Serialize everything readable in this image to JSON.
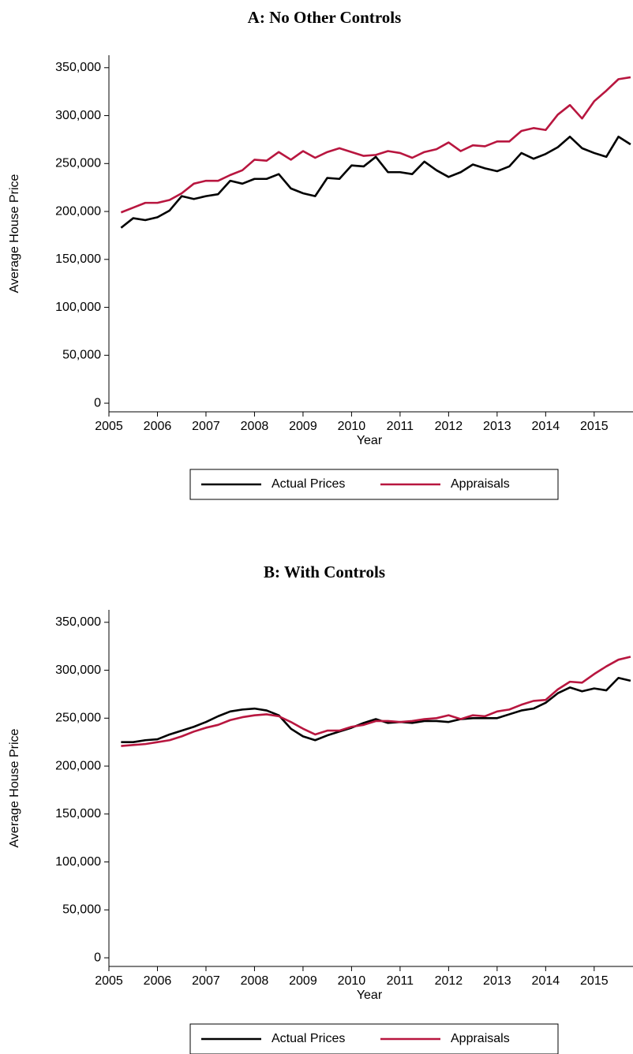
{
  "chart_data": [
    {
      "type": "line",
      "title": "A: No Other Controls",
      "x_label": "Year",
      "y_label": "Average House Price",
      "x": [
        2005.25,
        2005.5,
        2005.75,
        2006,
        2006.25,
        2006.5,
        2006.75,
        2007,
        2007.25,
        2007.5,
        2007.75,
        2008,
        2008.25,
        2008.5,
        2008.75,
        2009,
        2009.25,
        2009.5,
        2009.75,
        2010,
        2010.25,
        2010.5,
        2010.75,
        2011,
        2011.25,
        2011.5,
        2011.75,
        2012,
        2012.25,
        2012.5,
        2012.75,
        2013,
        2013.25,
        2013.5,
        2013.75,
        2014,
        2014.25,
        2014.5,
        2014.75,
        2015,
        2015.25,
        2015.5,
        2015.75
      ],
      "series": [
        {
          "name": "Actual Prices",
          "color": "#000000",
          "values": [
            183000,
            193000,
            191000,
            194000,
            201000,
            216000,
            213000,
            216000,
            218000,
            232000,
            229000,
            234000,
            234000,
            239000,
            224000,
            219000,
            216000,
            235000,
            234000,
            248000,
            247000,
            257000,
            241000,
            241000,
            239000,
            252000,
            243000,
            236000,
            241000,
            249000,
            245000,
            242000,
            247000,
            261000,
            255000,
            260000,
            267000,
            278000,
            266000,
            261000,
            257000,
            278000,
            270000
          ]
        },
        {
          "name": "Appraisals",
          "color": "#b8163f",
          "values": [
            199000,
            204000,
            209000,
            209000,
            212000,
            219000,
            229000,
            232000,
            232000,
            238000,
            243000,
            254000,
            253000,
            262000,
            254000,
            263000,
            256000,
            262000,
            266000,
            262000,
            258000,
            259000,
            263000,
            261000,
            256000,
            262000,
            265000,
            272000,
            263000,
            269000,
            268000,
            273000,
            273000,
            284000,
            287000,
            285000,
            301000,
            311000,
            297000,
            315000,
            326000,
            338000,
            340000
          ]
        }
      ],
      "xlim": [
        2005,
        2015.8
      ],
      "ylim": [
        -9000,
        363000
      ],
      "xticks": [
        2005,
        2006,
        2007,
        2008,
        2009,
        2010,
        2011,
        2012,
        2013,
        2014,
        2015
      ],
      "yticks": [
        0,
        {
          "value": 50000,
          "label": "50,000"
        },
        {
          "value": 100000,
          "label": "100,000"
        },
        {
          "value": 150000,
          "label": "150,000"
        },
        {
          "value": 200000,
          "label": "200,000"
        },
        {
          "value": 250000,
          "label": "250,000"
        },
        {
          "value": 300000,
          "label": "300,000"
        },
        {
          "value": 350000,
          "label": "350,000"
        }
      ],
      "legend": "bottom"
    },
    {
      "type": "line",
      "title": "B: With Controls",
      "x_label": "Year",
      "y_label": "Average House Price",
      "x": [
        2005.25,
        2005.5,
        2005.75,
        2006,
        2006.25,
        2006.5,
        2006.75,
        2007,
        2007.25,
        2007.5,
        2007.75,
        2008,
        2008.25,
        2008.5,
        2008.75,
        2009,
        2009.25,
        2009.5,
        2009.75,
        2010,
        2010.25,
        2010.5,
        2010.75,
        2011,
        2011.25,
        2011.5,
        2011.75,
        2012,
        2012.25,
        2012.5,
        2012.75,
        2013,
        2013.25,
        2013.5,
        2013.75,
        2014,
        2014.25,
        2014.5,
        2014.75,
        2015,
        2015.25,
        2015.5,
        2015.75
      ],
      "series": [
        {
          "name": "Actual Prices",
          "color": "#000000",
          "values": [
            225000,
            225000,
            227000,
            228000,
            233000,
            237000,
            241000,
            246000,
            252000,
            257000,
            259000,
            260000,
            258000,
            253000,
            239000,
            231000,
            227000,
            232000,
            236000,
            240000,
            245000,
            249000,
            245000,
            246000,
            245000,
            247000,
            247000,
            246000,
            249000,
            250000,
            250000,
            250000,
            254000,
            258000,
            260000,
            266000,
            276000,
            282000,
            278000,
            281000,
            279000,
            292000,
            289000
          ]
        },
        {
          "name": "Appraisals",
          "color": "#b8163f",
          "values": [
            221000,
            222000,
            223000,
            225000,
            227000,
            231000,
            236000,
            240000,
            243000,
            248000,
            251000,
            253000,
            254000,
            252000,
            246000,
            239000,
            233000,
            237000,
            237000,
            241000,
            243000,
            247000,
            247000,
            246000,
            247000,
            249000,
            250000,
            253000,
            249000,
            253000,
            252000,
            257000,
            259000,
            264000,
            268000,
            269000,
            280000,
            288000,
            287000,
            296000,
            304000,
            311000,
            314000
          ]
        }
      ],
      "xlim": [
        2005,
        2015.8
      ],
      "ylim": [
        -9000,
        363000
      ],
      "xticks": [
        2005,
        2006,
        2007,
        2008,
        2009,
        2010,
        2011,
        2012,
        2013,
        2014,
        2015
      ],
      "yticks": [
        0,
        {
          "value": 50000,
          "label": "50,000"
        },
        {
          "value": 100000,
          "label": "100,000"
        },
        {
          "value": 150000,
          "label": "150,000"
        },
        {
          "value": 200000,
          "label": "200,000"
        },
        {
          "value": 250000,
          "label": "250,000"
        },
        {
          "value": 300000,
          "label": "300,000"
        },
        {
          "value": 350000,
          "label": "350,000"
        }
      ],
      "legend": "bottom"
    }
  ]
}
